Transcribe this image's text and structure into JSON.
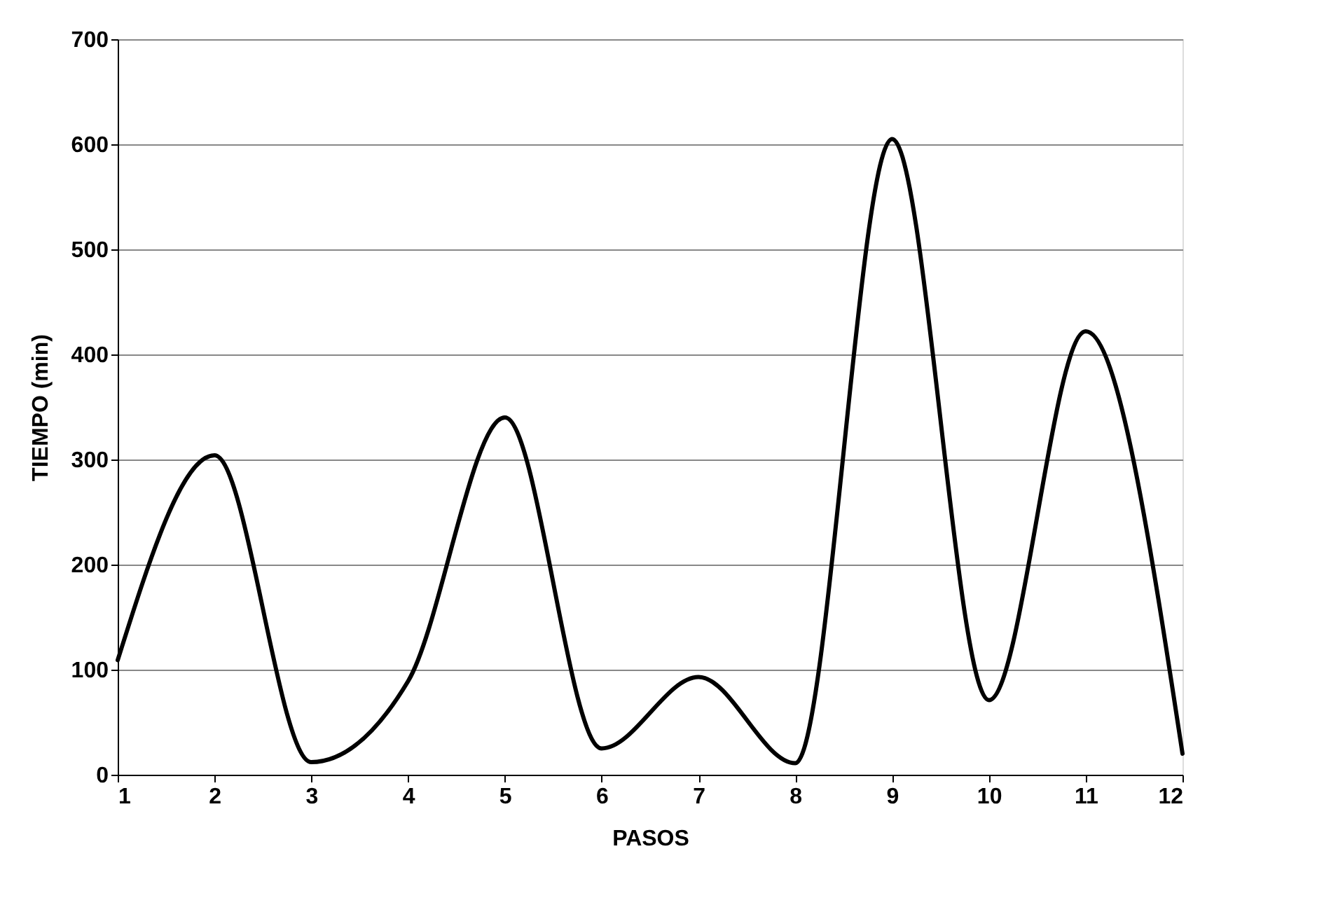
{
  "chart_data": {
    "type": "line",
    "xlabel": "PASOS",
    "ylabel": "TIEMPO (min)",
    "x": [
      1,
      2,
      3,
      4,
      5,
      6,
      7,
      8,
      9,
      10,
      11,
      12
    ],
    "series": [
      {
        "color": "#000000",
        "values": [
          109,
          304,
          12,
          89,
          340,
          25,
          93,
          11,
          605,
          71,
          422,
          20
        ]
      }
    ],
    "xlim": [
      1,
      12
    ],
    "xticks": [
      1,
      2,
      3,
      4,
      5,
      6,
      7,
      8,
      9,
      10,
      11,
      12
    ],
    "ylim": [
      0,
      700
    ],
    "yticks": [
      0,
      100,
      200,
      300,
      400,
      500,
      600,
      700
    ],
    "grid": "y",
    "legend": false,
    "marker": "none",
    "line_style": "solid"
  }
}
